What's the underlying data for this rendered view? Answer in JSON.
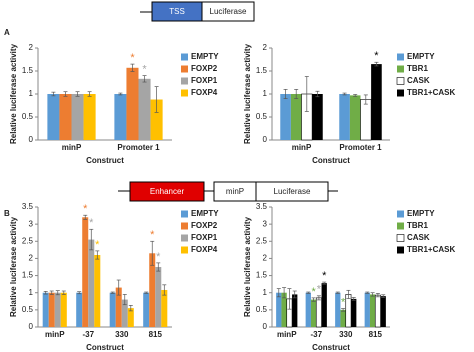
{
  "figure": {
    "constructs": [
      [
        "TSS",
        "Luciferase"
      ],
      [
        "Enhancer",
        "minP",
        "Luciferase"
      ]
    ],
    "panel_labels": [
      "A",
      "B"
    ]
  },
  "chart_data": [
    {
      "type": "bar",
      "ylabel": "Relative luciferase activity",
      "xlabel": "Construct",
      "categories": [
        "minP",
        "Promoter 1"
      ],
      "ylim": [
        0,
        2
      ],
      "yticks": [
        0,
        0.5,
        1,
        1.5,
        2
      ],
      "series": [
        {
          "name": "EMPTY",
          "color": "#5b9bd5",
          "values": [
            1,
            1
          ],
          "errors": [
            0.04,
            0.02
          ]
        },
        {
          "name": "FOXP2",
          "color": "#ed7d31",
          "values": [
            1,
            1.57
          ],
          "errors": [
            0.05,
            0.08
          ],
          "significance": [
            null,
            "*"
          ],
          "significance_color": "#ed7d31"
        },
        {
          "name": "FOXP1",
          "color": "#a5a5a5",
          "values": [
            1,
            1.33
          ],
          "errors": [
            0.05,
            0.07
          ],
          "significance": [
            null,
            "*"
          ],
          "significance_color": "#a5a5a5"
        },
        {
          "name": "FOXP4",
          "color": "#ffc000",
          "values": [
            1,
            0.88
          ],
          "errors": [
            0.05,
            0.28
          ]
        }
      ]
    },
    {
      "type": "bar",
      "ylabel": "Relative luciferase activity",
      "xlabel": "Construct",
      "categories": [
        "minP",
        "Promoter 1"
      ],
      "ylim": [
        0,
        2
      ],
      "yticks": [
        0,
        0.5,
        1,
        1.5,
        2
      ],
      "series": [
        {
          "name": "EMPTY",
          "color": "#5b9bd5",
          "values": [
            1,
            1
          ],
          "errors": [
            0.1,
            0.02
          ]
        },
        {
          "name": "TBR1",
          "color": "#70ad47",
          "values": [
            1,
            0.97
          ],
          "errors": [
            0.1,
            0.02
          ]
        },
        {
          "name": "CASK",
          "color": "#ffffff",
          "edgecolor": "#000000",
          "values": [
            1,
            0.88
          ],
          "errors": [
            0.38,
            0.1
          ]
        },
        {
          "name": "TBR1+CASK",
          "color": "#000000",
          "values": [
            1,
            1.65
          ],
          "errors": [
            0.06,
            0.04
          ],
          "significance": [
            null,
            "*"
          ],
          "significance_color": "#000000"
        }
      ]
    },
    {
      "type": "bar",
      "ylabel": "Relative luciferase activity",
      "xlabel": "Construct",
      "categories": [
        "minP",
        "-37",
        "330",
        "815"
      ],
      "ylim": [
        0,
        3.5
      ],
      "yticks": [
        0,
        0.5,
        1,
        1.5,
        2,
        2.5,
        3,
        3.5
      ],
      "series": [
        {
          "name": "EMPTY",
          "color": "#5b9bd5",
          "values": [
            1,
            1,
            1,
            1
          ],
          "errors": [
            0.04,
            0.03,
            0.02,
            0.02
          ]
        },
        {
          "name": "FOXP2",
          "color": "#ed7d31",
          "values": [
            1,
            3.2,
            1.15,
            2.15
          ],
          "errors": [
            0.05,
            0.06,
            0.22,
            0.35
          ],
          "significance": [
            null,
            "*",
            null,
            "*"
          ],
          "significance_color": "#ed7d31"
        },
        {
          "name": "FOXP1",
          "color": "#a5a5a5",
          "values": [
            1,
            2.55,
            0.8,
            1.75
          ],
          "errors": [
            0.06,
            0.3,
            0.15,
            0.12
          ],
          "significance": [
            null,
            "*",
            null,
            "*"
          ],
          "significance_color": "#a5a5a5"
        },
        {
          "name": "FOXP4",
          "color": "#ffc000",
          "values": [
            1,
            2.1,
            0.55,
            1.08
          ],
          "errors": [
            0.05,
            0.12,
            0.08,
            0.15
          ],
          "significance": [
            null,
            "*",
            null,
            null
          ],
          "significance_color": "#ffc000"
        }
      ]
    },
    {
      "type": "bar",
      "ylabel": "Relative luciferase activity",
      "xlabel": "Construct",
      "categories": [
        "minP",
        "-37",
        "330",
        "815"
      ],
      "ylim": [
        0,
        3.5
      ],
      "yticks": [
        0,
        0.5,
        1,
        1.5,
        2,
        2.5,
        3,
        3.5
      ],
      "series": [
        {
          "name": "EMPTY",
          "color": "#5b9bd5",
          "values": [
            1,
            1,
            1,
            1
          ],
          "errors": [
            0.12,
            0.02,
            0.02,
            0.02
          ]
        },
        {
          "name": "TBR1",
          "color": "#70ad47",
          "values": [
            1,
            0.8,
            0.5,
            0.95
          ],
          "errors": [
            0.15,
            0.05,
            0.04,
            0.05
          ],
          "significance": [
            null,
            "*",
            "*",
            null
          ],
          "significance_color": "#70ad47"
        },
        {
          "name": "CASK",
          "color": "#ffffff",
          "edgecolor": "#000000",
          "values": [
            0.82,
            0.85,
            0.95,
            0.93
          ],
          "errors": [
            0.3,
            0.06,
            0.12,
            0.05
          ],
          "significance": [
            null,
            "*",
            null,
            null
          ],
          "significance_color": "#a5a5a5"
        },
        {
          "name": "TBR1+CASK",
          "color": "#000000",
          "values": [
            0.95,
            1.28,
            0.82,
            0.9
          ],
          "errors": [
            0.1,
            0.03,
            0.04,
            0.04
          ],
          "significance": [
            null,
            "*",
            null,
            null
          ],
          "significance_color": "#000000"
        }
      ]
    }
  ]
}
